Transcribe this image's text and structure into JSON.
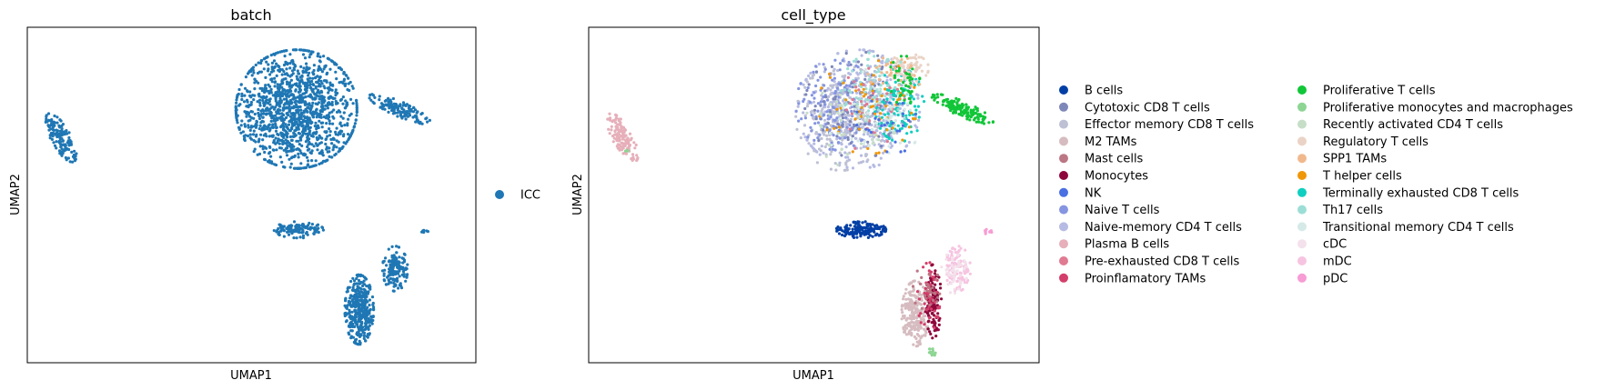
{
  "chart_data": [
    {
      "type": "scatter",
      "title": "batch",
      "xlabel": "UMAP1",
      "ylabel": "UMAP2",
      "grid": false,
      "ticks": "none",
      "legend_placement": "right",
      "legend": [
        {
          "name": "ICC",
          "color": "#1f77b4"
        }
      ],
      "clusters": [
        {
          "category": "ICC",
          "cx": 6.0,
          "cy": 6.2,
          "rx": 1.35,
          "ry": 1.45,
          "n": 1300
        },
        {
          "category": "ICC",
          "cx": 8.3,
          "cy": 6.2,
          "rx": 0.75,
          "ry": 0.18,
          "n": 130,
          "rot": -0.45
        },
        {
          "category": "ICC",
          "cx": 0.75,
          "cy": 5.5,
          "rx": 0.22,
          "ry": 0.65,
          "n": 140,
          "rot": 0.45
        },
        {
          "category": "ICC",
          "cx": 6.05,
          "cy": 3.25,
          "rx": 0.55,
          "ry": 0.2,
          "n": 120
        },
        {
          "category": "ICC",
          "cx": 7.4,
          "cy": 1.3,
          "rx": 0.32,
          "ry": 0.85,
          "n": 380
        },
        {
          "category": "ICC",
          "cx": 8.2,
          "cy": 2.3,
          "rx": 0.28,
          "ry": 0.55,
          "n": 150
        },
        {
          "category": "ICC",
          "cx": 8.85,
          "cy": 3.2,
          "rx": 0.1,
          "ry": 0.06,
          "n": 8
        }
      ]
    },
    {
      "type": "scatter",
      "title": "cell_type",
      "xlabel": "UMAP1",
      "ylabel": "UMAP2",
      "grid": false,
      "ticks": "none",
      "legend_placement": "right",
      "legend": [
        {
          "name": "B cells",
          "color": "#023fa5"
        },
        {
          "name": "Cytotoxic CD8 T cells",
          "color": "#7d87b9"
        },
        {
          "name": "Effector memory CD8 T cells",
          "color": "#bec1d4"
        },
        {
          "name": "M2 TAMs",
          "color": "#d6bcc0"
        },
        {
          "name": "Mast cells",
          "color": "#bb7784"
        },
        {
          "name": "Monocytes",
          "color": "#8e063b"
        },
        {
          "name": "NK",
          "color": "#4a6fe3"
        },
        {
          "name": "Naive T cells",
          "color": "#8595e1"
        },
        {
          "name": "Naive-memory CD4 T cells",
          "color": "#b5bbe3"
        },
        {
          "name": "Plasma B cells",
          "color": "#e6afb9"
        },
        {
          "name": "Pre-exhausted CD8 T cells",
          "color": "#e07b91"
        },
        {
          "name": "Proinflamatory TAMs",
          "color": "#d33f6a"
        },
        {
          "name": "Proliferative T cells",
          "color": "#11c638"
        },
        {
          "name": "Proliferative monocytes and macrophages",
          "color": "#8dd593"
        },
        {
          "name": "Recently activated CD4 T cells",
          "color": "#c6dec7"
        },
        {
          "name": "Regulatory T cells",
          "color": "#ead3c6"
        },
        {
          "name": "SPP1 TAMs",
          "color": "#f0b98d"
        },
        {
          "name": "T helper cells",
          "color": "#ef9708"
        },
        {
          "name": "Terminally exhausted CD8 T cells",
          "color": "#0fcfc0"
        },
        {
          "name": "Th17 cells",
          "color": "#9cded6"
        },
        {
          "name": "Transitional memory CD4 T cells",
          "color": "#d5eae7"
        },
        {
          "name": "cDC",
          "color": "#f3e1eb"
        },
        {
          "name": "mDC",
          "color": "#f6c4e1"
        },
        {
          "name": "pDC",
          "color": "#f79cd4"
        }
      ],
      "clusters": [
        {
          "category": "Naive-memory CD4 T cells",
          "cx": 6.0,
          "cy": 6.2,
          "rx": 1.35,
          "ry": 1.45,
          "n": 380
        },
        {
          "category": "Effector memory CD8 T cells",
          "cx": 5.6,
          "cy": 6.0,
          "rx": 1.0,
          "ry": 1.3,
          "n": 220
        },
        {
          "category": "Naive T cells",
          "cx": 5.5,
          "cy": 6.3,
          "rx": 0.9,
          "ry": 1.1,
          "n": 150
        },
        {
          "category": "Cytotoxic CD8 T cells",
          "cx": 6.0,
          "cy": 6.3,
          "rx": 1.2,
          "ry": 1.3,
          "n": 110
        },
        {
          "category": "Terminally exhausted CD8 T cells",
          "cx": 6.9,
          "cy": 6.3,
          "rx": 0.55,
          "ry": 0.9,
          "n": 110
        },
        {
          "category": "Th17 cells",
          "cx": 6.4,
          "cy": 6.6,
          "rx": 0.8,
          "ry": 1.0,
          "n": 90
        },
        {
          "category": "Regulatory T cells",
          "cx": 7.1,
          "cy": 7.2,
          "rx": 0.45,
          "ry": 0.35,
          "n": 70
        },
        {
          "category": "T helper cells",
          "cx": 6.2,
          "cy": 6.3,
          "rx": 1.1,
          "ry": 1.2,
          "n": 60
        },
        {
          "category": "SPP1 TAMs",
          "cx": 6.8,
          "cy": 7.0,
          "rx": 0.6,
          "ry": 0.5,
          "n": 35
        },
        {
          "category": "Transitional memory CD4 T cells",
          "cx": 6.3,
          "cy": 6.0,
          "rx": 1.1,
          "ry": 1.2,
          "n": 60
        },
        {
          "category": "Pre-exhausted CD8 T cells",
          "cx": 6.3,
          "cy": 6.2,
          "rx": 1.1,
          "ry": 1.2,
          "n": 35
        },
        {
          "category": "Recently activated CD4 T cells",
          "cx": 5.8,
          "cy": 5.8,
          "rx": 1.0,
          "ry": 1.0,
          "n": 40
        },
        {
          "category": "NK",
          "cx": 6.6,
          "cy": 5.8,
          "rx": 0.7,
          "ry": 0.8,
          "n": 25
        },
        {
          "category": "Proliferative T cells",
          "cx": 8.3,
          "cy": 6.2,
          "rx": 0.75,
          "ry": 0.18,
          "n": 150,
          "rot": -0.45
        },
        {
          "category": "Proliferative T cells",
          "cx": 7.0,
          "cy": 6.9,
          "rx": 0.35,
          "ry": 0.6,
          "n": 40
        },
        {
          "category": "Plasma B cells",
          "cx": 0.75,
          "cy": 5.5,
          "rx": 0.22,
          "ry": 0.65,
          "n": 140,
          "rot": 0.45
        },
        {
          "category": "Proliferative monocytes and macrophages",
          "cx": 0.85,
          "cy": 5.2,
          "rx": 0.08,
          "ry": 0.08,
          "n": 3
        },
        {
          "category": "B cells",
          "cx": 6.05,
          "cy": 3.25,
          "rx": 0.55,
          "ry": 0.2,
          "n": 150
        },
        {
          "category": "M2 TAMs",
          "cx": 7.25,
          "cy": 1.2,
          "rx": 0.3,
          "ry": 0.8,
          "n": 230
        },
        {
          "category": "Monocytes",
          "cx": 7.65,
          "cy": 1.5,
          "rx": 0.18,
          "ry": 0.9,
          "n": 120
        },
        {
          "category": "Proinflamatory TAMs",
          "cx": 7.55,
          "cy": 1.6,
          "rx": 0.25,
          "ry": 0.85,
          "n": 50
        },
        {
          "category": "Mast cells",
          "cx": 7.5,
          "cy": 1.8,
          "rx": 0.3,
          "ry": 0.6,
          "n": 30
        },
        {
          "category": "Proliferative monocytes and macrophages",
          "cx": 7.6,
          "cy": 0.25,
          "rx": 0.1,
          "ry": 0.12,
          "n": 12
        },
        {
          "category": "mDC",
          "cx": 8.2,
          "cy": 2.3,
          "rx": 0.28,
          "ry": 0.55,
          "n": 110
        },
        {
          "category": "cDC",
          "cx": 8.1,
          "cy": 2.2,
          "rx": 0.3,
          "ry": 0.5,
          "n": 50
        },
        {
          "category": "pDC",
          "cx": 8.85,
          "cy": 3.2,
          "rx": 0.1,
          "ry": 0.06,
          "n": 10
        }
      ]
    }
  ]
}
